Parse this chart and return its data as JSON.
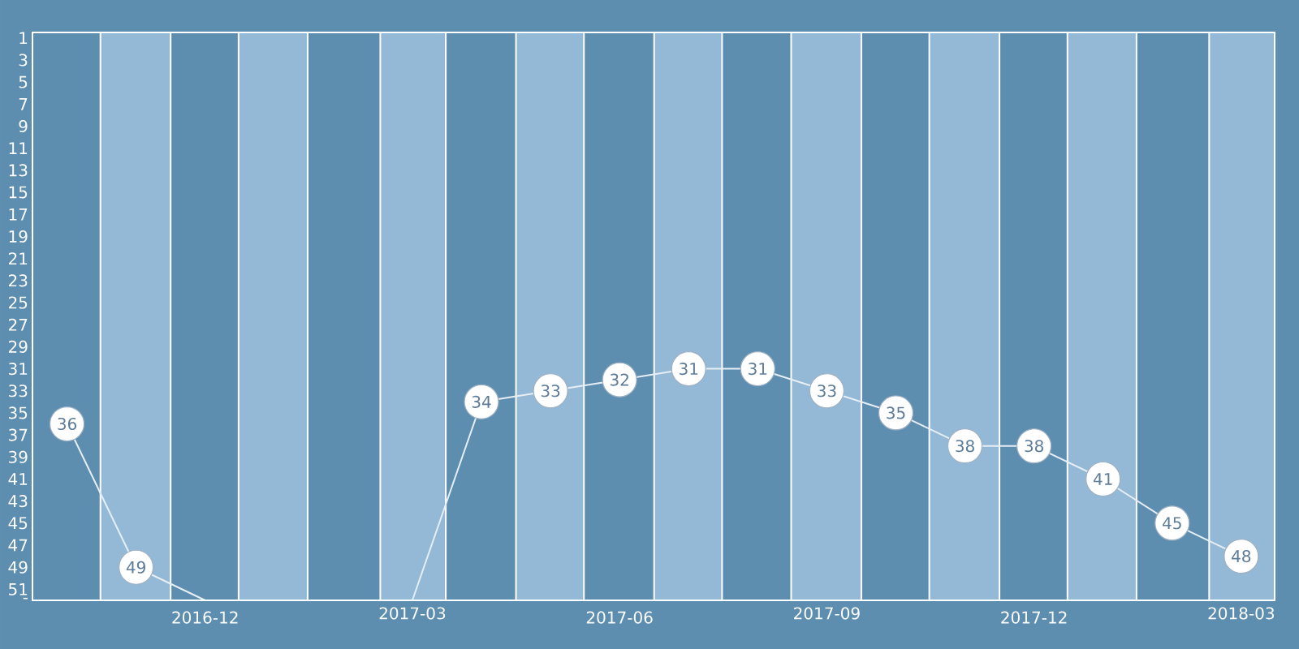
{
  "chart_data": {
    "type": "line",
    "x": [
      "2016-10",
      "2016-11",
      "2016-12",
      "2017-01",
      "2017-02",
      "2017-03",
      "2017-04",
      "2017-05",
      "2017-06",
      "2017-07",
      "2017-08",
      "2017-09",
      "2017-10",
      "2017-11",
      "2017-12",
      "2018-01",
      "2018-02",
      "2018-03"
    ],
    "xlim": [
      "2016-09-16",
      "2018-03-16"
    ],
    "xticks": [
      "2016-12",
      "2017-03",
      "2017-06",
      "2017-09",
      "2017-12",
      "2018-03"
    ],
    "series": [
      {
        "color": "#e6eef5",
        "values": [
          36,
          49,
          52,
          52,
          52,
          52,
          34,
          33,
          32,
          31,
          31,
          33,
          35,
          38,
          38,
          41,
          45,
          48
        ],
        "value_labels": [
          "36",
          "49",
          null,
          null,
          null,
          null,
          "34",
          "33",
          "32",
          "31",
          "31",
          "33",
          "35",
          "38",
          "38",
          "41",
          "45",
          "48"
        ]
      }
    ],
    "ylim": [
      52,
      0.5
    ],
    "yticks": [
      1,
      3,
      5,
      7,
      9,
      11,
      13,
      15,
      17,
      19,
      21,
      23,
      25,
      27,
      29,
      31,
      33,
      35,
      37,
      39,
      41,
      43,
      45,
      47,
      49,
      51,
      {
        "value": 52,
        "label": "-"
      }
    ],
    "bands": [
      {
        "axis": "x",
        "from": "2016-10-16",
        "to": "2016-11-16",
        "color": "#93b9d6"
      },
      {
        "axis": "x",
        "from": "2016-12-16",
        "to": "2017-01-16",
        "color": "#93b9d6"
      },
      {
        "axis": "x",
        "from": "2017-02-16",
        "to": "2017-03-16",
        "color": "#93b9d6"
      },
      {
        "axis": "x",
        "from": "2017-04-16",
        "to": "2017-05-16",
        "color": "#93b9d6"
      },
      {
        "axis": "x",
        "from": "2017-06-16",
        "to": "2017-07-16",
        "color": "#93b9d6"
      },
      {
        "axis": "x",
        "from": "2017-08-16",
        "to": "2017-09-16",
        "color": "#93b9d6"
      },
      {
        "axis": "x",
        "from": "2017-10-16",
        "to": "2017-11-16",
        "color": "#93b9d6"
      },
      {
        "axis": "x",
        "from": "2017-12-16",
        "to": "2018-01-16",
        "color": "#93b9d6"
      },
      {
        "axis": "x",
        "from": "2018-02-16",
        "to": "2018-03-16",
        "color": "#93b9d6"
      }
    ],
    "marker": "circle"
  }
}
